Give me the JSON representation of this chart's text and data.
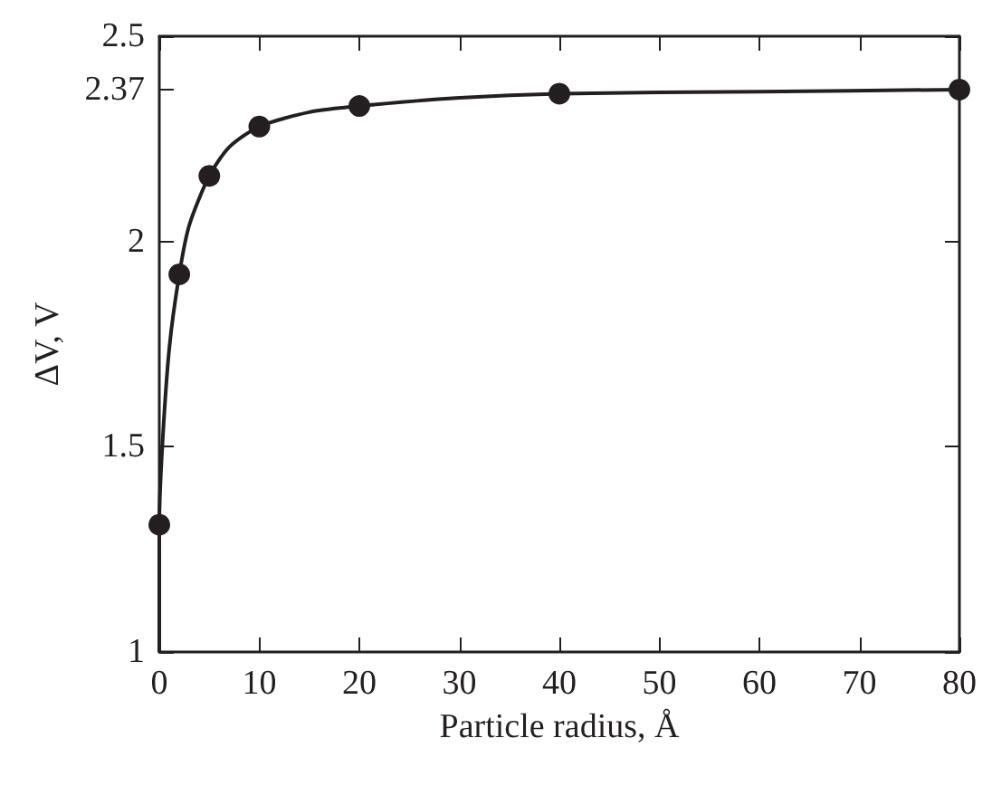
{
  "chart_data": {
    "type": "scatter",
    "xlabel": "Particle radius, Å",
    "ylabel": "ΔV, V",
    "series": [
      {
        "color": "#231f20",
        "x": [
          0,
          2,
          5,
          10,
          20,
          40,
          80
        ],
        "values": [
          1.31,
          1.92,
          2.16,
          2.28,
          2.33,
          2.36,
          2.37
        ],
        "marker": "circle"
      },
      {
        "type": "line",
        "color": "#231f20",
        "x": [
          0,
          0,
          0.3,
          1,
          2,
          3,
          5,
          7,
          10,
          15,
          20,
          30,
          40,
          60,
          80
        ],
        "values": [
          1,
          1.31,
          1.5,
          1.74,
          1.92,
          2.04,
          2.16,
          2.23,
          2.28,
          2.315,
          2.33,
          2.35,
          2.36,
          2.365,
          2.37
        ],
        "marker": "none",
        "line_style": "solid"
      }
    ],
    "xlim": [
      0,
      80
    ],
    "xticks": [
      0,
      10,
      20,
      30,
      40,
      50,
      60,
      70,
      80
    ],
    "ylim": [
      1,
      2.5
    ],
    "yticks": [
      1,
      1.5,
      2,
      2.37,
      2.5
    ],
    "grid": false
  }
}
